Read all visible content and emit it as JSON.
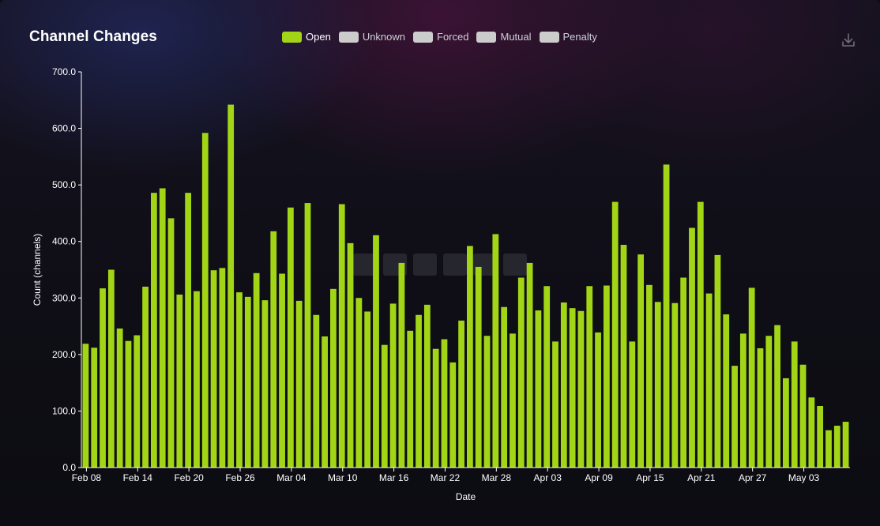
{
  "header": {
    "title": "Channel Changes"
  },
  "legend": [
    {
      "label": "Open",
      "color": "#a2d516",
      "active": true
    },
    {
      "label": "Unknown",
      "color": "#cccccc",
      "active": false
    },
    {
      "label": "Forced",
      "color": "#cccccc",
      "active": false
    },
    {
      "label": "Mutual",
      "color": "#cccccc",
      "active": false
    },
    {
      "label": "Penalty",
      "color": "#cccccc",
      "active": false
    }
  ],
  "icons": {
    "download": "download-icon",
    "watermark": "amboss-watermark"
  },
  "chart_data": {
    "type": "bar",
    "title": "Channel Changes",
    "xlabel": "Date",
    "ylabel": "Count (channels)",
    "ylim": [
      0,
      700
    ],
    "yticks": [
      "0.0",
      "100.0",
      "200.0",
      "300.0",
      "400.0",
      "500.0",
      "600.0",
      "700.0"
    ],
    "xticks": [
      "Feb 08",
      "Feb 14",
      "Feb 20",
      "Feb 26",
      "Mar 04",
      "Mar 10",
      "Mar 16",
      "Mar 22",
      "Mar 28",
      "Apr 03",
      "Apr 09",
      "Apr 15",
      "Apr 21",
      "Apr 27",
      "May 03"
    ],
    "start_date": "2023-02-08",
    "bar_color": "#a2d516",
    "grid": false,
    "series": [
      {
        "name": "Open",
        "values": [
          219,
          212,
          317,
          350,
          246,
          224,
          234,
          320,
          486,
          494,
          441,
          306,
          486,
          312,
          592,
          349,
          353,
          642,
          310,
          302,
          344,
          296,
          418,
          343,
          460,
          295,
          468,
          270,
          232,
          316,
          466,
          397,
          300,
          276,
          411,
          217,
          290,
          362,
          242,
          270,
          288,
          210,
          227,
          186,
          260,
          392,
          355,
          233,
          413,
          284,
          237,
          336,
          362,
          278,
          321,
          223,
          292,
          282,
          277,
          321,
          239,
          322,
          470,
          394,
          223,
          377,
          323,
          293,
          536,
          291,
          336,
          424,
          470,
          308,
          376,
          271,
          180,
          237,
          318,
          211,
          233,
          252,
          158,
          223,
          182,
          124,
          109,
          66,
          74,
          81
        ]
      }
    ]
  }
}
